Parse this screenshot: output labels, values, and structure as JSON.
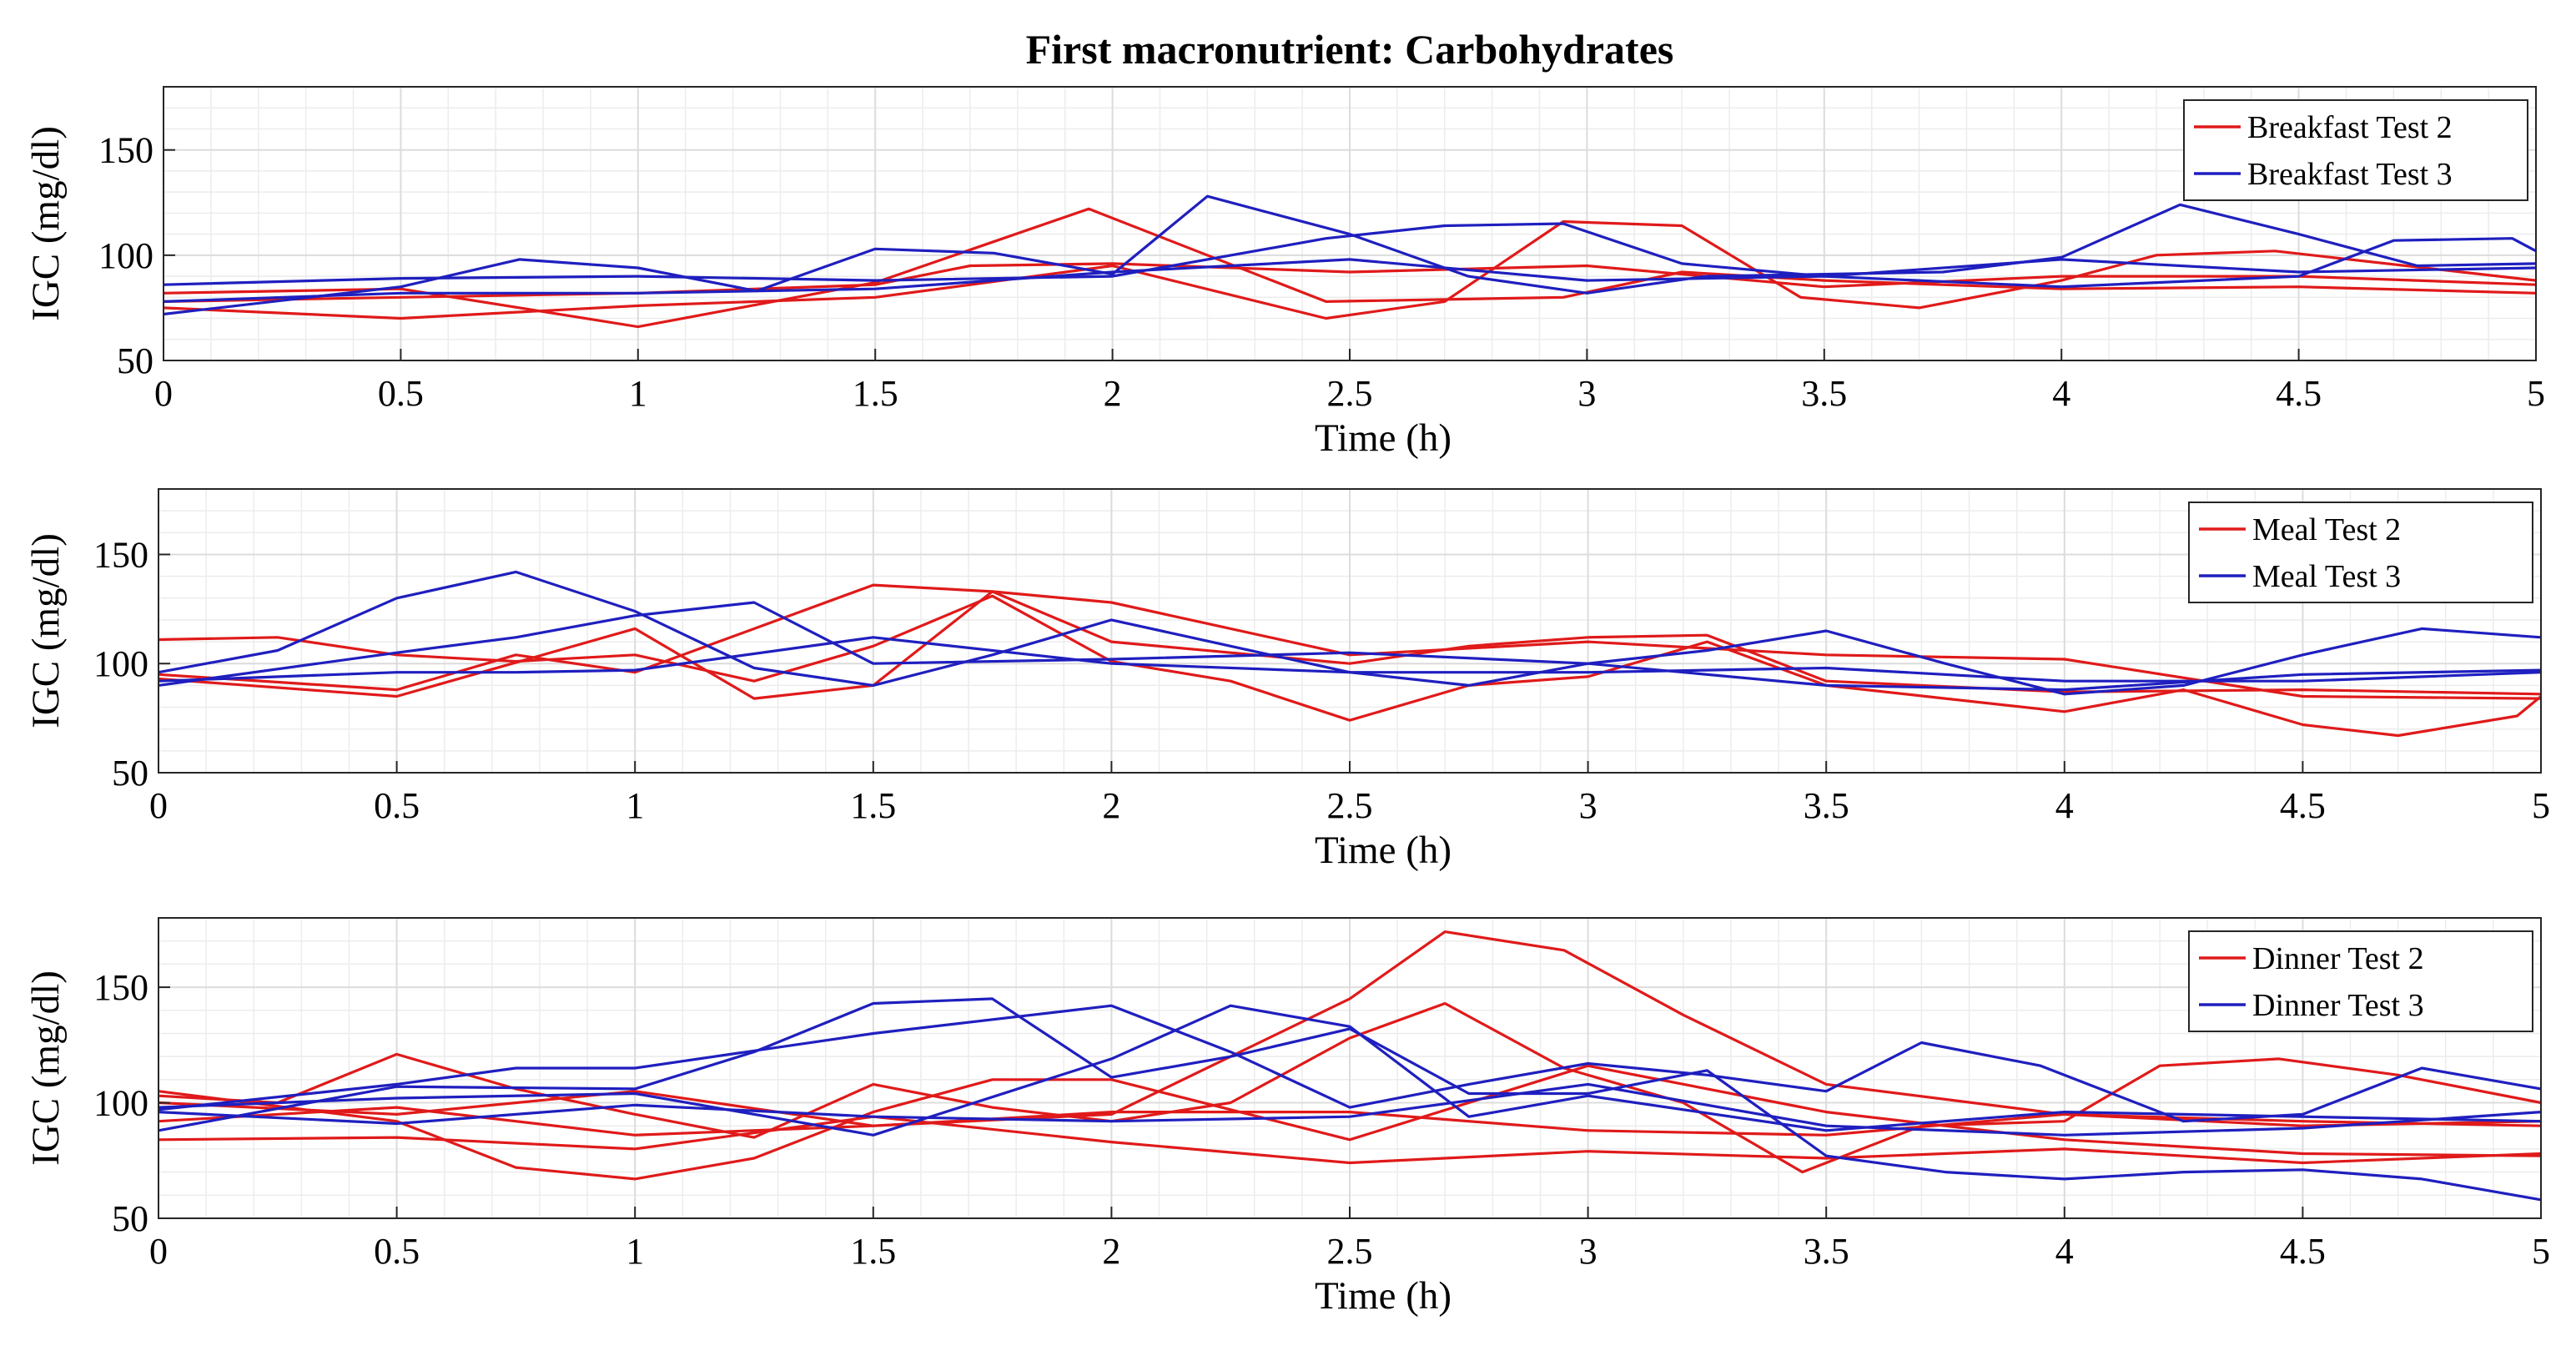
{
  "figure_title": "First macronutrient: Carbohydrates",
  "colors": {
    "test2": "#e01a1a",
    "test3": "#1f1fbf"
  },
  "chart_data": [
    {
      "type": "line",
      "xlabel": "Time (h)",
      "ylabel": "IGC (mg/dl)",
      "xlim": [
        0,
        5
      ],
      "ylim": [
        50,
        180
      ],
      "xticks": [
        0,
        0.5,
        1,
        1.5,
        2,
        2.5,
        3,
        3.5,
        4,
        4.5,
        5
      ],
      "xtick_labels": [
        "0",
        "0.5",
        "1",
        "1.5",
        "2",
        "2.5",
        "3",
        "3.5",
        "4",
        "4.5",
        "5"
      ],
      "yticks": [
        50,
        100,
        150
      ],
      "ytick_labels": [
        "50",
        "100",
        "150"
      ],
      "grid": true,
      "legend": "top-right",
      "legend_entries": [
        "Breakfast Test 2",
        "Breakfast Test 3"
      ],
      "series": [
        {
          "group": "test2",
          "x": [
            0,
            0.5,
            1,
            1.5,
            1.95,
            2.45,
            2.95,
            3.2,
            3.5,
            4,
            4.5,
            5
          ],
          "values": [
            82,
            84,
            66,
            87,
            122,
            78,
            80,
            92,
            88,
            84,
            85,
            82
          ]
        },
        {
          "group": "test2",
          "x": [
            0,
            0.5,
            1,
            1.5,
            2,
            2.45,
            2.7,
            2.95,
            3.2,
            3.45,
            3.7,
            4,
            4.2,
            4.45,
            5
          ],
          "values": [
            75,
            70,
            76,
            80,
            95,
            70,
            78,
            116,
            114,
            80,
            75,
            88,
            100,
            102,
            88
          ]
        },
        {
          "group": "test2",
          "x": [
            0,
            0.5,
            1,
            1.5,
            1.7,
            2,
            2.5,
            3,
            3.5,
            4,
            4.5,
            5
          ],
          "values": [
            78,
            80,
            82,
            86,
            95,
            96,
            92,
            95,
            85,
            90,
            90,
            86
          ]
        },
        {
          "group": "test3",
          "x": [
            0,
            0.5,
            0.75,
            1,
            1.25,
            1.5,
            1.75,
            2,
            2.2,
            2.5,
            2.75,
            3,
            3.25,
            3.5,
            3.75,
            4,
            4.25,
            4.5,
            4.75,
            5
          ],
          "values": [
            72,
            85,
            98,
            94,
            83,
            103,
            101,
            91,
            128,
            110,
            90,
            82,
            90,
            91,
            92,
            99,
            124,
            110,
            95,
            96
          ]
        },
        {
          "group": "test3",
          "x": [
            0,
            0.5,
            1,
            1.5,
            2,
            2.45,
            2.7,
            2.95,
            3.2,
            3.5,
            4,
            4.5,
            4.7,
            4.95,
            5
          ],
          "values": [
            86,
            89,
            90,
            88,
            90,
            108,
            114,
            115,
            96,
            90,
            85,
            90,
            107,
            108,
            102
          ]
        },
        {
          "group": "test3",
          "x": [
            0,
            0.5,
            1,
            1.5,
            2,
            2.5,
            3,
            3.5,
            4,
            4.5,
            5
          ],
          "values": [
            78,
            82,
            82,
            84,
            92,
            98,
            88,
            90,
            98,
            92,
            94
          ]
        }
      ]
    },
    {
      "type": "line",
      "xlabel": "Time (h)",
      "ylabel": "IGC (mg/dl)",
      "xlim": [
        0,
        5
      ],
      "ylim": [
        50,
        180
      ],
      "xticks": [
        0,
        0.5,
        1,
        1.5,
        2,
        2.5,
        3,
        3.5,
        4,
        4.5,
        5
      ],
      "xtick_labels": [
        "0",
        "0.5",
        "1",
        "1.5",
        "2",
        "2.5",
        "3",
        "3.5",
        "4",
        "4.5",
        "5"
      ],
      "yticks": [
        50,
        100,
        150
      ],
      "ytick_labels": [
        "50",
        "100",
        "150"
      ],
      "grid": true,
      "legend": "top-right",
      "legend_entries": [
        "Meal Test 2",
        "Meal Test 3"
      ],
      "series": [
        {
          "group": "test2",
          "x": [
            0,
            0.25,
            0.5,
            0.75,
            1,
            1.25,
            1.5,
            1.75,
            2,
            2.25,
            2.5,
            2.75,
            3,
            3.25,
            3.5,
            3.75,
            4,
            4.25,
            4.5,
            4.7,
            4.95,
            5
          ],
          "values": [
            111,
            112,
            104,
            101,
            104,
            92,
            108,
            131,
            101,
            92,
            74,
            90,
            94,
            110,
            90,
            84,
            78,
            88,
            72,
            67,
            76,
            85
          ]
        },
        {
          "group": "test2",
          "x": [
            0,
            0.5,
            1,
            1.25,
            1.5,
            1.75,
            2,
            2.5,
            3,
            3.5,
            4,
            4.5,
            5
          ],
          "values": [
            93,
            85,
            116,
            84,
            90,
            133,
            128,
            104,
            110,
            104,
            102,
            85,
            84
          ]
        },
        {
          "group": "test2",
          "x": [
            0,
            0.5,
            0.75,
            1,
            1.5,
            1.75,
            2,
            2.5,
            2.75,
            3,
            3.25,
            3.5,
            4,
            4.5,
            5
          ],
          "values": [
            95,
            88,
            104,
            96,
            136,
            133,
            110,
            100,
            108,
            112,
            113,
            92,
            87,
            88,
            86
          ]
        },
        {
          "group": "test3",
          "x": [
            0,
            0.25,
            0.5,
            0.75,
            1,
            1.25,
            1.5,
            1.75,
            2,
            2.25,
            2.5,
            2.75,
            3,
            3.25,
            3.5,
            3.75,
            4,
            4.25,
            4.5,
            4.75,
            5
          ],
          "values": [
            96,
            106,
            130,
            142,
            124,
            98,
            90,
            104,
            120,
            108,
            96,
            90,
            100,
            106,
            115,
            100,
            86,
            90,
            104,
            116,
            112
          ]
        },
        {
          "group": "test3",
          "x": [
            0,
            0.5,
            0.75,
            1,
            1.25,
            1.5,
            2,
            2.5,
            3,
            3.5,
            4,
            4.5,
            5
          ],
          "values": [
            90,
            105,
            112,
            122,
            128,
            100,
            102,
            105,
            100,
            90,
            88,
            95,
            97
          ]
        },
        {
          "group": "test3",
          "x": [
            0,
            0.5,
            0.75,
            1,
            1.5,
            2,
            2.5,
            3,
            3.5,
            4,
            4.5,
            5
          ],
          "values": [
            92,
            96,
            96,
            97,
            112,
            100,
            96,
            96,
            98,
            92,
            92,
            96
          ]
        }
      ]
    },
    {
      "type": "line",
      "xlabel": "Time (h)",
      "ylabel": "IGC (mg/dl)",
      "xlim": [
        0,
        5
      ],
      "ylim": [
        50,
        180
      ],
      "xticks": [
        0,
        0.5,
        1,
        1.5,
        2,
        2.5,
        3,
        3.5,
        4,
        4.5,
        5
      ],
      "xtick_labels": [
        "0",
        "0.5",
        "1",
        "1.5",
        "2",
        "2.5",
        "3",
        "3.5",
        "4",
        "4.5",
        "5"
      ],
      "yticks": [
        50,
        100,
        150
      ],
      "ytick_labels": [
        "50",
        "100",
        "150"
      ],
      "grid": true,
      "legend": "top-right",
      "legend_entries": [
        "Dinner Test 2",
        "Dinner Test 3"
      ],
      "series": [
        {
          "group": "test2",
          "x": [
            0,
            0.5,
            1,
            1.5,
            2,
            2.5,
            2.7,
            2.95,
            3.2,
            3.5,
            4,
            4.5,
            5
          ],
          "values": [
            100,
            95,
            105,
            90,
            95,
            145,
            174,
            166,
            138,
            108,
            95,
            92,
            90
          ]
        },
        {
          "group": "test2",
          "x": [
            0,
            0.25,
            0.5,
            0.75,
            1,
            1.25,
            1.5,
            1.75,
            2,
            2.25,
            2.5,
            2.7,
            2.95,
            3.2,
            3.45,
            3.7,
            4,
            4.2,
            4.45,
            4.7,
            5
          ],
          "values": [
            103,
            100,
            121,
            106,
            95,
            85,
            108,
            98,
            92,
            100,
            128,
            143,
            115,
            100,
            70,
            90,
            92,
            116,
            119,
            112,
            100
          ]
        },
        {
          "group": "test2",
          "x": [
            0,
            0.5,
            0.75,
            1,
            1.25,
            1.5,
            1.75,
            2,
            2.5,
            3,
            3.5,
            4,
            4.5,
            5
          ],
          "values": [
            105,
            92,
            72,
            67,
            76,
            96,
            110,
            110,
            84,
            116,
            96,
            84,
            78,
            77
          ]
        },
        {
          "group": "test2",
          "x": [
            0,
            0.5,
            1,
            1.5,
            2,
            2.5,
            3,
            3.5,
            4,
            4.5,
            5
          ],
          "values": [
            84,
            85,
            80,
            94,
            83,
            74,
            79,
            76,
            80,
            74,
            78
          ]
        },
        {
          "group": "test2",
          "x": [
            0,
            0.5,
            1,
            1.5,
            2,
            2.5,
            3,
            3.5,
            4,
            4.5,
            5
          ],
          "values": [
            92,
            98,
            86,
            90,
            96,
            96,
            88,
            86,
            95,
            90,
            92
          ]
        },
        {
          "group": "test3",
          "x": [
            0,
            0.5,
            1,
            1.25,
            1.5,
            1.75,
            2,
            2.25,
            2.5,
            2.75,
            3,
            3.25,
            3.5,
            3.75,
            4,
            4.25,
            4.5,
            4.75,
            5
          ],
          "values": [
            88,
            107,
            106,
            122,
            143,
            145,
            111,
            120,
            132,
            104,
            104,
            114,
            77,
            70,
            67,
            70,
            71,
            67,
            58
          ]
        },
        {
          "group": "test3",
          "x": [
            0,
            0.5,
            0.75,
            1,
            1.5,
            1.75,
            2,
            2.25,
            2.5,
            2.75,
            3,
            3.25,
            3.5,
            3.7,
            3.95,
            4.25,
            4.5,
            4.75,
            5
          ],
          "values": [
            97,
            108,
            115,
            115,
            130,
            136,
            142,
            122,
            98,
            108,
            117,
            112,
            105,
            126,
            116,
            92,
            95,
            115,
            106
          ]
        },
        {
          "group": "test3",
          "x": [
            0,
            0.5,
            1,
            1.5,
            2,
            2.25,
            2.5,
            2.75,
            3,
            3.5,
            4,
            4.5,
            5
          ],
          "values": [
            98,
            102,
            104,
            86,
            119,
            142,
            133,
            94,
            103,
            88,
            96,
            94,
            92
          ]
        },
        {
          "group": "test3",
          "x": [
            0,
            0.5,
            1,
            1.5,
            2,
            2.5,
            3,
            3.5,
            4,
            4.5,
            5
          ],
          "values": [
            96,
            91,
            99,
            94,
            92,
            94,
            108,
            90,
            86,
            89,
            96
          ]
        }
      ]
    }
  ]
}
